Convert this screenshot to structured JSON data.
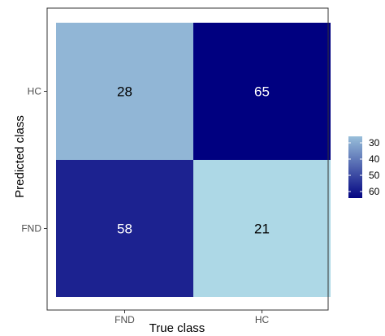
{
  "chart_data": {
    "type": "heatmap",
    "xlabel": "True class",
    "ylabel": "Predicted class",
    "x_categories": [
      "FND",
      "HC"
    ],
    "y_categories": [
      "FND",
      "HC"
    ],
    "cells": [
      {
        "x": "FND",
        "y": "HC",
        "value": 28
      },
      {
        "x": "HC",
        "y": "HC",
        "value": 65
      },
      {
        "x": "FND",
        "y": "FND",
        "value": 58
      },
      {
        "x": "HC",
        "y": "FND",
        "value": 21
      }
    ],
    "color_scale": {
      "low_value": 21,
      "high_value": 65,
      "low_color": "#ADD8E6",
      "high_color": "#000080"
    },
    "legend": {
      "position": "right",
      "breaks": [
        30,
        40,
        50,
        60
      ]
    },
    "panel_border": true,
    "grid": false
  }
}
